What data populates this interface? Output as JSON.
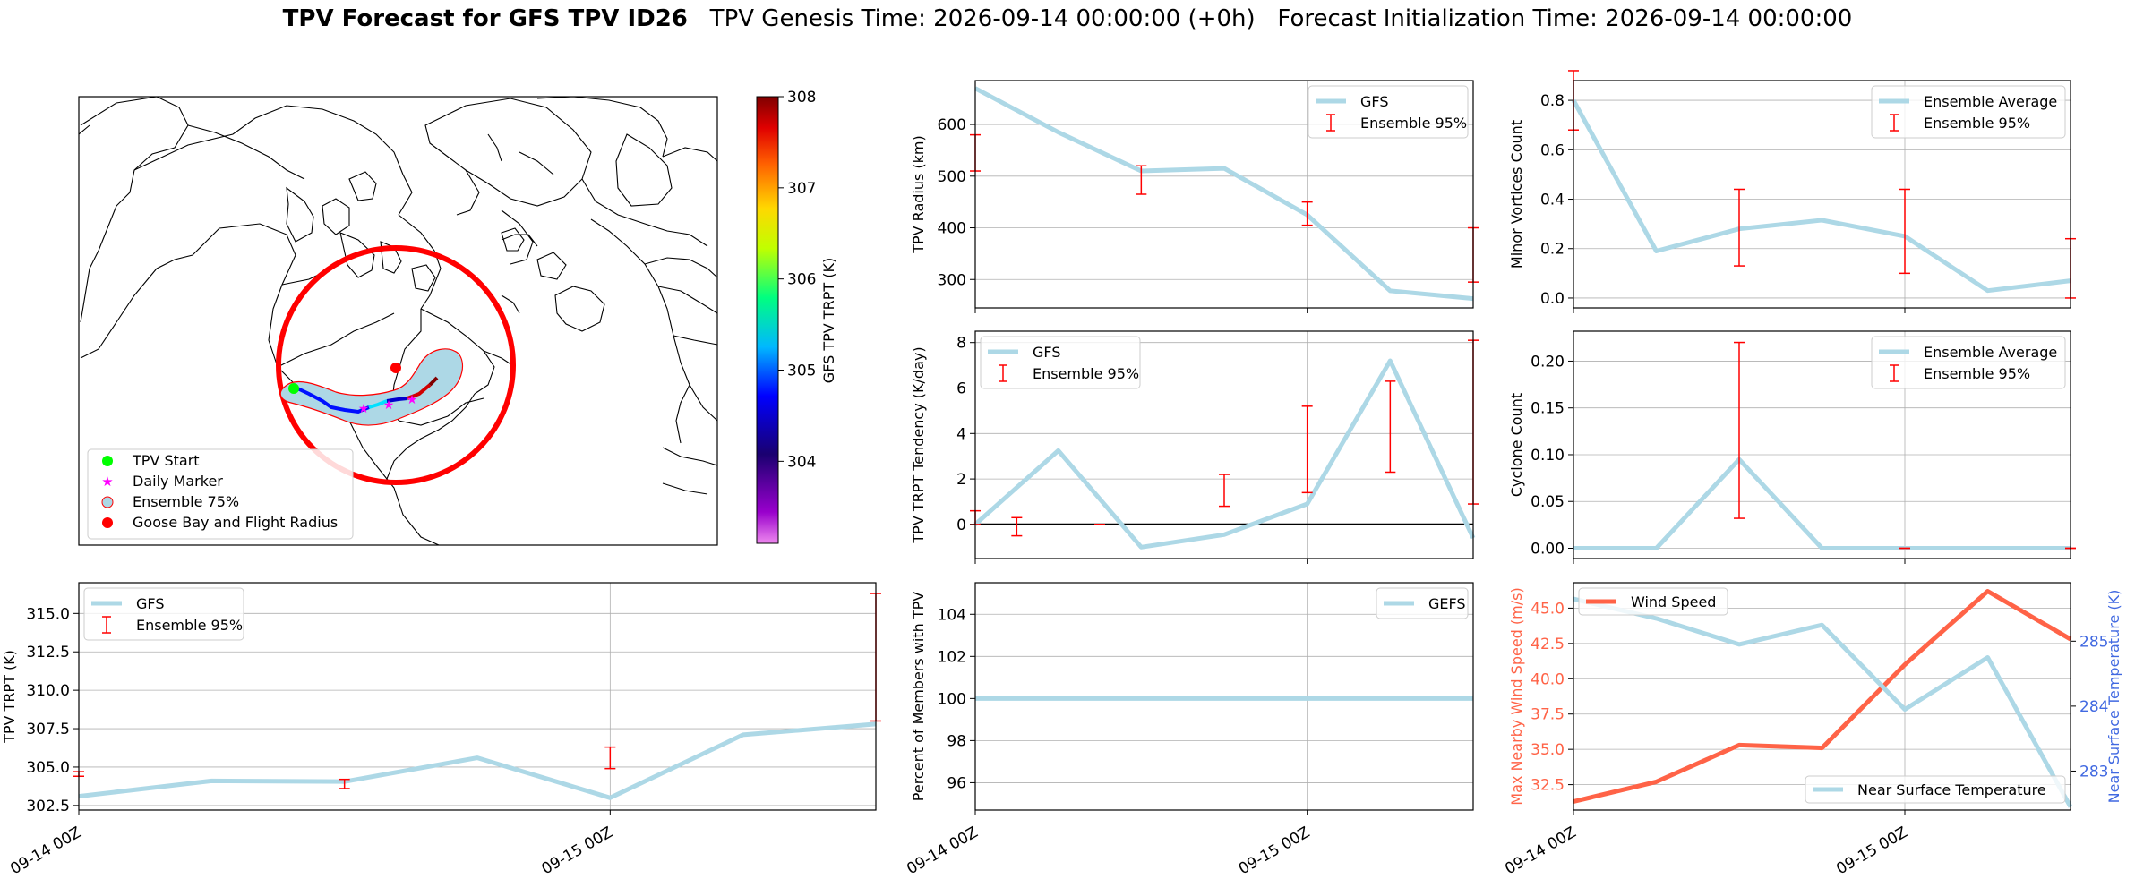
{
  "figure": {
    "title_bold": "TPV Forecast for GFS TPV ID26",
    "title_rest": "   TPV Genesis Time: 2026-09-14 00:00:00 (+0h)   Forecast Initialization Time: 2026-09-14 00:00:00"
  },
  "colors": {
    "series_line": "#add8e6",
    "error_bar": "#ff0000",
    "wind_line": "#ff6347",
    "temp_axis": "#4169e1",
    "track_marker_start": "#00ff00",
    "daily_marker": "#ff00ff",
    "goose_bay": "#ff0000"
  },
  "map_panel": {
    "legend": [
      "TPV Start",
      "Daily Marker",
      "Ensemble 75%",
      "Goose Bay and Flight Radius"
    ],
    "colorbar": {
      "label": "GFS TPV TRPT (K)",
      "ticks": [
        "304",
        "305",
        "306",
        "307",
        "308"
      ],
      "range": [
        303.1,
        308
      ]
    }
  },
  "x_tick_labels": [
    "09-14 00Z",
    "09-15 00Z"
  ],
  "chart_data": [
    {
      "id": "radius",
      "type": "line",
      "ylabel": "TPV Radius (km)",
      "x": [
        0,
        6,
        12,
        18,
        24,
        30,
        36
      ],
      "series": [
        {
          "name": "GFS",
          "values": [
            670,
            585,
            510,
            515,
            425,
            278,
            263
          ]
        }
      ],
      "errorbars": {
        "name": "Ensemble 95%",
        "x": [
          0,
          12,
          24,
          36
        ],
        "low": [
          510,
          465,
          405,
          295
        ],
        "high": [
          580,
          520,
          450,
          400
        ]
      },
      "legend": [
        "GFS",
        "Ensemble 95%"
      ],
      "legend_loc": "upper right",
      "ylim": [
        245,
        685
      ],
      "yticks": [
        300,
        400,
        500,
        600
      ],
      "ytick_labels": [
        "300",
        "400",
        "500",
        "600"
      ]
    },
    {
      "id": "minor",
      "type": "line",
      "ylabel": "Minor Vortices Count",
      "x": [
        0,
        6,
        12,
        18,
        24,
        30,
        36
      ],
      "series": [
        {
          "name": "Ensemble Average",
          "values": [
            0.8,
            0.19,
            0.28,
            0.315,
            0.25,
            0.03,
            0.07
          ]
        }
      ],
      "errorbars": {
        "name": "Ensemble 95%",
        "x": [
          0,
          12,
          24,
          36
        ],
        "low": [
          0.68,
          0.13,
          0.1,
          0.0
        ],
        "high": [
          0.92,
          0.44,
          0.44,
          0.24
        ]
      },
      "legend": [
        "Ensemble Average",
        "Ensemble 95%"
      ],
      "legend_loc": "upper right",
      "ylim": [
        -0.04,
        0.88
      ],
      "yticks": [
        0,
        0.2,
        0.4,
        0.6,
        0.8
      ],
      "ytick_labels": [
        "0.0",
        "0.2",
        "0.4",
        "0.6",
        "0.8"
      ]
    },
    {
      "id": "tendency",
      "type": "line",
      "ylabel": "TPV TRPT Tendency (K/day)",
      "x": [
        0,
        6,
        12,
        18,
        24,
        30,
        36
      ],
      "series": [
        {
          "name": "GFS",
          "values": [
            0.0,
            3.25,
            -1.0,
            -0.45,
            0.9,
            7.2,
            -0.6
          ]
        }
      ],
      "errorbars": {
        "name": "Ensemble 95%",
        "x": [
          0,
          3,
          6,
          9,
          12,
          15,
          18,
          21,
          24,
          27,
          30,
          33,
          36
        ],
        "low": [
          0.0,
          -0.5,
          0.0,
          0.0,
          0.0,
          0.0,
          0.8,
          0.0,
          1.4,
          0.0,
          2.3,
          0.0,
          0.9
        ],
        "high": [
          0.6,
          0.3,
          1.0,
          0.0,
          0.0,
          0.0,
          2.2,
          0.0,
          5.2,
          0.0,
          6.3,
          0.0,
          8.1
        ]
      },
      "errorbars_shown": [
        true,
        true,
        false,
        true,
        false,
        false,
        true,
        false,
        true,
        false,
        true,
        false,
        true
      ],
      "zero_line": true,
      "legend": [
        "GFS",
        "Ensemble 95%"
      ],
      "legend_loc": "upper left",
      "ylim": [
        -1.5,
        8.5
      ],
      "yticks": [
        0,
        2,
        4,
        6,
        8
      ],
      "ytick_labels": [
        "0",
        "2",
        "4",
        "6",
        "8"
      ]
    },
    {
      "id": "cyclone",
      "type": "line",
      "ylabel": "Cyclone Count",
      "x": [
        0,
        6,
        12,
        18,
        24,
        30,
        36
      ],
      "series": [
        {
          "name": "Ensemble Average",
          "values": [
            0,
            0,
            0.095,
            0,
            0,
            0,
            0
          ]
        }
      ],
      "errorbars": {
        "name": "Ensemble 95%",
        "x": [
          12,
          24,
          36
        ],
        "low": [
          0.032,
          0.0,
          0.0
        ],
        "high": [
          0.22,
          0.0,
          0.0
        ]
      },
      "legend": [
        "Ensemble Average",
        "Ensemble 95%"
      ],
      "legend_loc": "upper right",
      "ylim": [
        -0.011,
        0.232
      ],
      "yticks": [
        0,
        0.05,
        0.1,
        0.15,
        0.2
      ],
      "ytick_labels": [
        "0.00",
        "0.05",
        "0.10",
        "0.15",
        "0.20"
      ]
    },
    {
      "id": "trpt",
      "type": "line",
      "ylabel": "TPV TRPT (K)",
      "x": [
        0,
        6,
        12,
        18,
        24,
        30,
        36
      ],
      "series": [
        {
          "name": "GFS",
          "values": [
            303.1,
            304.1,
            304.05,
            305.6,
            303.0,
            307.1,
            307.8
          ]
        }
      ],
      "errorbars": {
        "name": "Ensemble 95%",
        "x": [
          0,
          12,
          24,
          36
        ],
        "low": [
          304.4,
          303.6,
          304.9,
          308.0
        ],
        "high": [
          304.7,
          304.2,
          306.3,
          316.3
        ]
      },
      "legend": [
        "GFS",
        "Ensemble 95%"
      ],
      "legend_loc": "upper left",
      "ylim": [
        302.2,
        317.0
      ],
      "yticks": [
        302.5,
        305,
        307.5,
        310,
        312.5,
        315
      ],
      "ytick_labels": [
        "302.5",
        "305.0",
        "307.5",
        "310.0",
        "312.5",
        "315.0"
      ]
    },
    {
      "id": "members",
      "type": "line",
      "ylabel": "Percent of Members with TPV",
      "x": [
        0,
        36
      ],
      "series": [
        {
          "name": "GEFS",
          "values": [
            100,
            100
          ]
        }
      ],
      "legend": [
        "GEFS"
      ],
      "legend_loc": "upper right",
      "ylim": [
        94.7,
        105.5
      ],
      "yticks": [
        96,
        98,
        100,
        102,
        104
      ],
      "ytick_labels": [
        "96",
        "98",
        "100",
        "102",
        "104"
      ]
    },
    {
      "id": "wind",
      "type": "line",
      "ylabel": "Max Nearby Wind Speed (m/s)",
      "ylabel2": "Near Surface Temperature (K)",
      "x": [
        0,
        6,
        12,
        18,
        24,
        30,
        36
      ],
      "series": [
        {
          "name": "Wind Speed",
          "axis": "left",
          "values": [
            31.3,
            32.7,
            35.3,
            35.1,
            41.0,
            46.2,
            42.8
          ]
        },
        {
          "name": "Near Surface Temperature",
          "axis": "right",
          "values": [
            285.65,
            285.35,
            284.95,
            285.25,
            283.95,
            284.75,
            282.45
          ]
        }
      ],
      "legend": [
        "Wind Speed",
        "Near Surface Temperature"
      ],
      "legend_loc": "upper left / lower right",
      "ylim": [
        30.7,
        46.8
      ],
      "yticks": [
        32.5,
        35,
        37.5,
        40,
        42.5,
        45
      ],
      "ytick_labels": [
        "32.5",
        "35.0",
        "37.5",
        "40.0",
        "42.5",
        "45.0"
      ],
      "ylim2": [
        282.4,
        285.9
      ],
      "yticks2": [
        283,
        284,
        285
      ],
      "ytick_labels2": [
        "283",
        "284",
        "285"
      ]
    }
  ]
}
